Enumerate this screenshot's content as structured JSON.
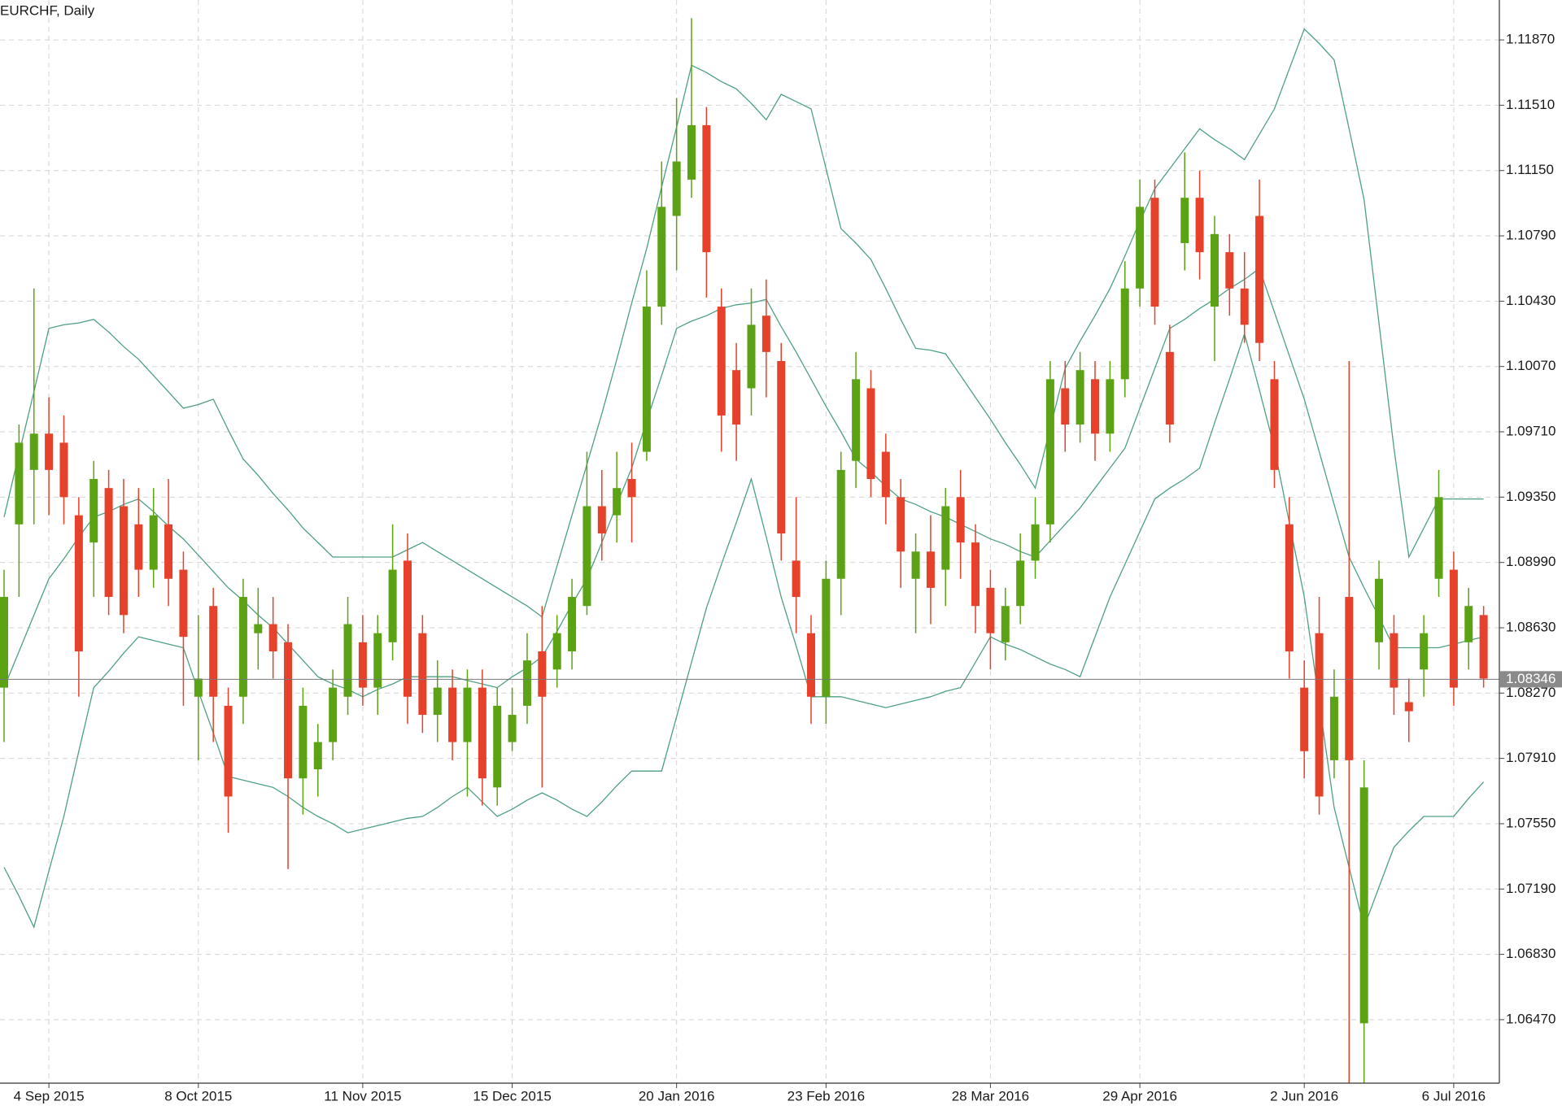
{
  "chart_data": {
    "type": "candlestick",
    "title": "EURCHF, Daily",
    "categories": [
      null,
      null,
      null,
      "4 Sep 2015",
      null,
      null,
      null,
      null,
      null,
      null,
      null,
      null,
      null,
      "8 Oct 2015",
      null,
      null,
      null,
      null,
      null,
      null,
      null,
      null,
      null,
      null,
      "11 Nov 2015",
      null,
      null,
      null,
      null,
      null,
      null,
      null,
      null,
      null,
      "15 Dec 2015",
      null,
      null,
      null,
      null,
      null,
      null,
      null,
      null,
      null,
      null,
      "20 Jan 2016",
      null,
      null,
      null,
      null,
      null,
      null,
      null,
      null,
      null,
      "23 Feb 2016",
      null,
      null,
      null,
      null,
      null,
      null,
      null,
      null,
      null,
      null,
      "28 Mar 2016",
      null,
      null,
      null,
      null,
      null,
      null,
      null,
      null,
      null,
      "29 Apr 2016",
      null,
      null,
      null,
      null,
      null,
      null,
      null,
      null,
      null,
      null,
      "2 Jun 2016",
      null,
      null,
      null,
      null,
      null,
      null,
      null,
      null,
      null,
      "6 Jul 2016",
      null,
      null
    ],
    "open": [
      1.083,
      1.092,
      1.095,
      1.097,
      1.0965,
      1.0925,
      1.091,
      1.094,
      1.093,
      1.092,
      1.0895,
      1.092,
      1.0895,
      1.0825,
      1.0875,
      1.082,
      1.0825,
      1.086,
      1.0865,
      1.0855,
      1.078,
      1.0785,
      1.08,
      1.0825,
      1.0855,
      1.083,
      1.0855,
      1.09,
      1.086,
      1.0815,
      1.083,
      1.08,
      1.083,
      1.0775,
      1.08,
      1.082,
      1.085,
      1.084,
      1.085,
      1.0875,
      1.093,
      1.0925,
      1.0945,
      1.096,
      1.104,
      1.109,
      1.111,
      1.114,
      1.104,
      1.1005,
      1.0995,
      1.1035,
      1.101,
      1.09,
      1.086,
      1.0825,
      1.089,
      1.0955,
      1.0995,
      1.096,
      1.0935,
      1.089,
      1.0905,
      1.0895,
      1.0935,
      1.091,
      1.0885,
      1.0855,
      1.0875,
      1.09,
      1.092,
      1.0995,
      1.0975,
      1.1,
      1.097,
      1.1,
      1.105,
      1.11,
      1.1015,
      1.1075,
      1.11,
      1.104,
      1.107,
      1.105,
      1.109,
      1.1,
      1.092,
      1.083,
      1.086,
      1.079,
      1.088,
      1.0645,
      1.0855,
      1.086,
      1.0822,
      1.084,
      1.089,
      1.0895,
      1.0855,
      1.087
    ],
    "high": [
      1.0895,
      1.0975,
      1.105,
      1.099,
      1.098,
      1.0935,
      1.0955,
      1.095,
      1.0945,
      1.094,
      1.094,
      1.0945,
      1.0905,
      1.087,
      1.0885,
      1.083,
      1.089,
      1.0885,
      1.088,
      1.0865,
      1.083,
      1.081,
      1.084,
      1.088,
      1.087,
      1.087,
      1.092,
      1.0915,
      1.087,
      1.0845,
      1.084,
      1.084,
      1.084,
      1.083,
      1.083,
      1.086,
      1.0875,
      1.087,
      1.089,
      1.096,
      1.095,
      1.096,
      1.0965,
      1.106,
      1.112,
      1.1155,
      1.1199,
      1.115,
      1.105,
      1.102,
      1.105,
      1.1055,
      1.102,
      1.0935,
      1.087,
      1.09,
      1.096,
      1.1015,
      1.1005,
      1.097,
      1.0945,
      1.0915,
      1.0925,
      1.094,
      1.095,
      1.092,
      1.0895,
      1.0885,
      1.0915,
      1.0935,
      1.101,
      1.101,
      1.1015,
      1.101,
      1.101,
      1.1065,
      1.111,
      1.111,
      1.103,
      1.1125,
      1.1115,
      1.109,
      1.108,
      1.107,
      1.111,
      1.101,
      1.0935,
      1.0845,
      1.088,
      1.084,
      1.101,
      1.079,
      1.09,
      1.087,
      1.0835,
      1.087,
      1.095,
      1.0905,
      1.0885,
      1.0875
    ],
    "low": [
      1.08,
      1.088,
      1.092,
      1.0925,
      1.092,
      1.0825,
      1.088,
      1.087,
      1.086,
      1.088,
      1.0885,
      1.0875,
      1.082,
      1.079,
      1.08,
      1.075,
      1.081,
      1.084,
      1.0835,
      1.073,
      1.076,
      1.077,
      1.079,
      1.0815,
      1.082,
      1.0815,
      1.0845,
      1.081,
      1.0805,
      1.08,
      1.079,
      1.077,
      1.0765,
      1.0765,
      1.0795,
      1.081,
      1.0775,
      1.083,
      1.084,
      1.087,
      1.09,
      1.091,
      1.091,
      1.0955,
      1.103,
      1.106,
      1.11,
      1.1045,
      1.096,
      1.0955,
      1.098,
      1.099,
      1.09,
      1.086,
      1.081,
      1.081,
      1.087,
      1.094,
      1.0935,
      1.092,
      1.0885,
      1.086,
      1.0865,
      1.0875,
      1.089,
      1.086,
      1.084,
      1.0845,
      1.0865,
      1.089,
      1.091,
      1.096,
      1.0965,
      1.0955,
      1.096,
      1.099,
      1.104,
      1.103,
      1.0965,
      1.106,
      1.1055,
      1.101,
      1.1035,
      1.102,
      1.101,
      1.094,
      1.0835,
      1.078,
      1.076,
      1.078,
      1.0612,
      1.0612,
      1.084,
      1.0815,
      1.08,
      1.0825,
      1.088,
      1.082,
      1.084,
      1.083
    ],
    "close": [
      1.088,
      1.0965,
      1.097,
      1.095,
      1.0935,
      1.085,
      1.0945,
      1.088,
      1.087,
      1.0895,
      1.0925,
      1.089,
      1.0858,
      1.0835,
      1.0825,
      1.077,
      1.088,
      1.0865,
      1.085,
      1.078,
      1.082,
      1.08,
      1.083,
      1.0865,
      1.083,
      1.086,
      1.0895,
      1.0825,
      1.0815,
      1.083,
      1.08,
      1.083,
      1.078,
      1.082,
      1.0815,
      1.0845,
      1.0825,
      1.086,
      1.088,
      1.093,
      1.0915,
      1.094,
      1.0935,
      1.104,
      1.1095,
      1.112,
      1.114,
      1.107,
      1.098,
      1.0975,
      1.103,
      1.1015,
      1.0915,
      1.088,
      1.0825,
      1.089,
      1.095,
      1.1,
      1.0945,
      1.0935,
      1.0905,
      1.0905,
      1.0885,
      1.093,
      1.091,
      1.0875,
      1.086,
      1.0875,
      1.09,
      1.092,
      1.1,
      1.0975,
      1.1005,
      1.097,
      1.1,
      1.105,
      1.1095,
      1.104,
      1.0975,
      1.11,
      1.107,
      1.108,
      1.105,
      1.103,
      1.102,
      1.095,
      1.085,
      1.0795,
      1.077,
      1.0825,
      1.079,
      1.0775,
      1.089,
      1.083,
      1.0817,
      1.086,
      1.0935,
      1.083,
      1.0875,
      1.0835
    ],
    "up_color": "#5ba314",
    "down_color": "#e5412b",
    "bands": [
      {
        "color": "#4fa080",
        "values": [
          1.0924,
          1.0959,
          1.0993,
          1.1028,
          1.103,
          1.1031,
          1.1033,
          1.1026,
          1.1018,
          1.1011,
          1.1002,
          1.0993,
          1.0984,
          1.0986,
          1.0989,
          1.0972,
          1.0956,
          1.0947,
          1.0937,
          1.0928,
          1.0918,
          1.091,
          1.0902,
          1.0902,
          1.0902,
          1.0902,
          1.0902,
          1.0906,
          1.091,
          1.0905,
          1.09,
          1.0895,
          1.089,
          1.0885,
          1.088,
          1.0875,
          1.0869,
          1.0897,
          1.0925,
          1.0953,
          1.0981,
          1.1011,
          1.1042,
          1.1072,
          1.1106,
          1.1139,
          1.1173,
          1.1169,
          1.1164,
          1.116,
          1.1152,
          1.1143,
          1.1157,
          1.1153,
          1.1149,
          1.1116,
          1.1083,
          1.1075,
          1.1066,
          1.105,
          1.1033,
          1.1017,
          1.1016,
          1.1014,
          1.1002,
          1.099,
          1.0978,
          1.0965,
          1.0953,
          1.094,
          1.0973,
          1.1006,
          1.1021,
          1.1035,
          1.105,
          1.1068,
          1.1087,
          1.1105,
          1.1116,
          1.1127,
          1.1138,
          1.1132,
          1.1127,
          1.1121,
          1.1135,
          1.1149,
          1.1171,
          1.1193,
          1.1185,
          1.1176,
          1.1138,
          1.1099,
          1.1031,
          1.0962,
          1.0902,
          1.0918,
          1.0934,
          1.0934,
          1.0934,
          1.0934
        ]
      },
      {
        "color": "#4fa080",
        "values": [
          1.083,
          1.085,
          1.087,
          1.089,
          1.0901,
          1.0913,
          1.0924,
          1.0927,
          1.0931,
          1.0934,
          1.0927,
          1.0919,
          1.0912,
          1.0903,
          1.0894,
          1.0885,
          1.0878,
          1.087,
          1.0863,
          1.0854,
          1.0845,
          1.0836,
          1.0832,
          1.0829,
          1.0825,
          1.0829,
          1.0832,
          1.0836,
          1.0836,
          1.0836,
          1.0836,
          1.0834,
          1.0832,
          1.083,
          1.0836,
          1.0841,
          1.0847,
          1.0861,
          1.0876,
          1.089,
          1.091,
          1.0931,
          1.0951,
          1.0977,
          1.1002,
          1.1028,
          1.1032,
          1.1035,
          1.1039,
          1.1041,
          1.1042,
          1.1044,
          1.1029,
          1.1015,
          1.1,
          1.0985,
          1.0971,
          1.0956,
          1.0949,
          1.0941,
          1.0934,
          1.0931,
          1.0927,
          1.0924,
          1.092,
          1.0916,
          1.0912,
          1.0909,
          1.0905,
          1.0902,
          1.0911,
          1.092,
          1.0929,
          1.094,
          1.0951,
          1.0962,
          1.0984,
          1.1006,
          1.1028,
          1.1033,
          1.1039,
          1.1044,
          1.105,
          1.1055,
          1.1061,
          1.1037,
          1.1013,
          1.0989,
          1.096,
          1.0931,
          1.0902,
          1.0885,
          1.0869,
          1.0852,
          1.0852,
          1.0852,
          1.0852,
          1.0854,
          1.0856,
          1.0858
        ]
      },
      {
        "color": "#4fa080",
        "values": [
          1.0731,
          1.0715,
          1.0698,
          1.0729,
          1.0759,
          1.0795,
          1.083,
          1.0839,
          1.0849,
          1.0858,
          1.0856,
          1.0854,
          1.0852,
          1.0828,
          1.0805,
          1.0781,
          1.0779,
          1.0777,
          1.0775,
          1.077,
          1.0764,
          1.0759,
          1.0755,
          1.075,
          1.0752,
          1.0754,
          1.0756,
          1.0758,
          1.0759,
          1.0764,
          1.077,
          1.0775,
          1.0767,
          1.0759,
          1.0763,
          1.0768,
          1.0772,
          1.0768,
          1.0763,
          1.0759,
          1.0767,
          1.0776,
          1.0784,
          1.0784,
          1.0784,
          1.0814,
          1.0844,
          1.0874,
          1.0898,
          1.0921,
          1.0945,
          1.0913,
          1.088,
          1.0853,
          1.0825,
          1.0825,
          1.0825,
          1.0823,
          1.0821,
          1.0819,
          1.0821,
          1.0823,
          1.0825,
          1.0828,
          1.083,
          1.0844,
          1.0858,
          1.0854,
          1.0851,
          1.0847,
          1.0843,
          1.084,
          1.0836,
          1.0858,
          1.088,
          1.0898,
          1.0916,
          1.0934,
          1.094,
          1.0945,
          1.0951,
          1.0976,
          1.1,
          1.1025,
          1.0994,
          1.0962,
          1.0921,
          1.088,
          1.0822,
          1.0764,
          1.0731,
          1.0698,
          1.072,
          1.0742,
          1.0751,
          1.0759,
          1.0759,
          1.0759,
          1.0769,
          1.0778
        ]
      }
    ],
    "last_price": 1.08346,
    "ylim": [
      1.0612,
      1.1209
    ],
    "yticks": [
      {
        "value": 1.0647,
        "label": "1.06470"
      },
      {
        "value": 1.0683,
        "label": "1.06830"
      },
      {
        "value": 1.0719,
        "label": "1.07190"
      },
      {
        "value": 1.0755,
        "label": "1.07550"
      },
      {
        "value": 1.0791,
        "label": "1.07910"
      },
      {
        "value": 1.0827,
        "label": "1.08270"
      },
      {
        "value": 1.0863,
        "label": "1.08630"
      },
      {
        "value": 1.0899,
        "label": "1.08990"
      },
      {
        "value": 1.0935,
        "label": "1.09350"
      },
      {
        "value": 1.0971,
        "label": "1.09710"
      },
      {
        "value": 1.1007,
        "label": "1.10070"
      },
      {
        "value": 1.1043,
        "label": "1.10430"
      },
      {
        "value": 1.1079,
        "label": "1.10790"
      },
      {
        "value": 1.1115,
        "label": "1.11150"
      },
      {
        "value": 1.1151,
        "label": "1.11510"
      },
      {
        "value": 1.1187,
        "label": "1.11870"
      }
    ],
    "grid": true
  }
}
